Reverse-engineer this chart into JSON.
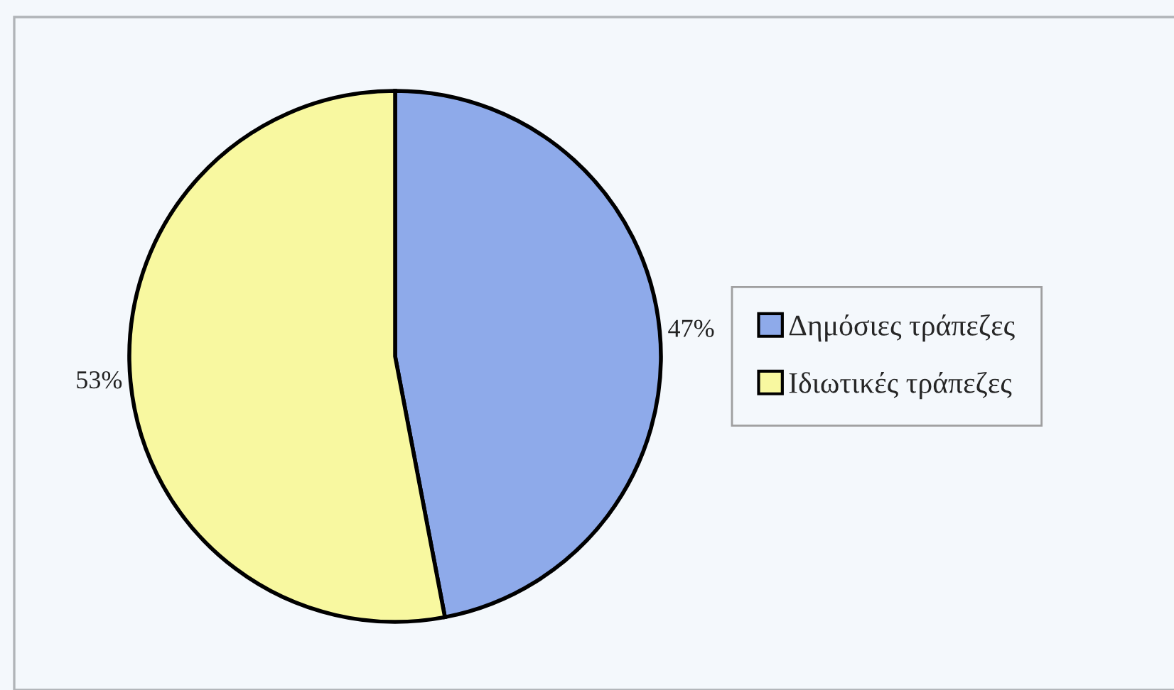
{
  "chart_data": {
    "type": "pie",
    "categories": [
      "Δημόσιες τράπεζες",
      "Ιδιωτικές τράπεζες"
    ],
    "values": [
      47,
      53
    ],
    "colors": [
      "#8eaaea",
      "#f8f8a0"
    ],
    "value_labels": [
      "47%",
      "53%"
    ],
    "legend": "right"
  }
}
